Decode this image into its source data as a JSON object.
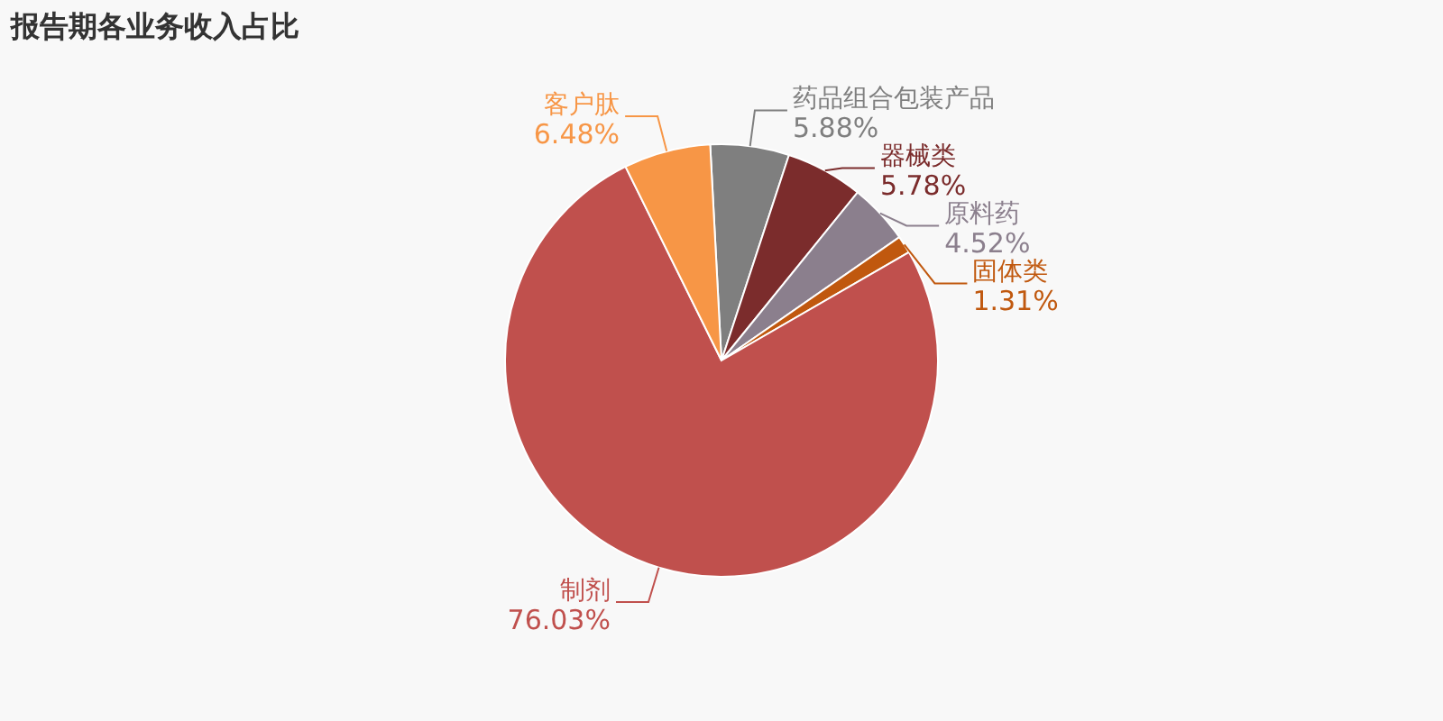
{
  "chart_data": {
    "type": "pie",
    "title": "报告期各业务收入占比",
    "categories": [
      "药品组合包装产品",
      "器械类",
      "原料药",
      "固体类",
      "制剂",
      "客户肽"
    ],
    "values": [
      5.88,
      5.78,
      4.52,
      1.31,
      76.03,
      6.48
    ],
    "value_labels": [
      "5.88%",
      "5.78%",
      "4.52%",
      "1.31%",
      "76.03%",
      "6.48%"
    ],
    "colors": [
      "#7f7f7f",
      "#7b2c2c",
      "#8b7f8d",
      "#c0580e",
      "#c0504d",
      "#f79646"
    ],
    "legend": false
  }
}
